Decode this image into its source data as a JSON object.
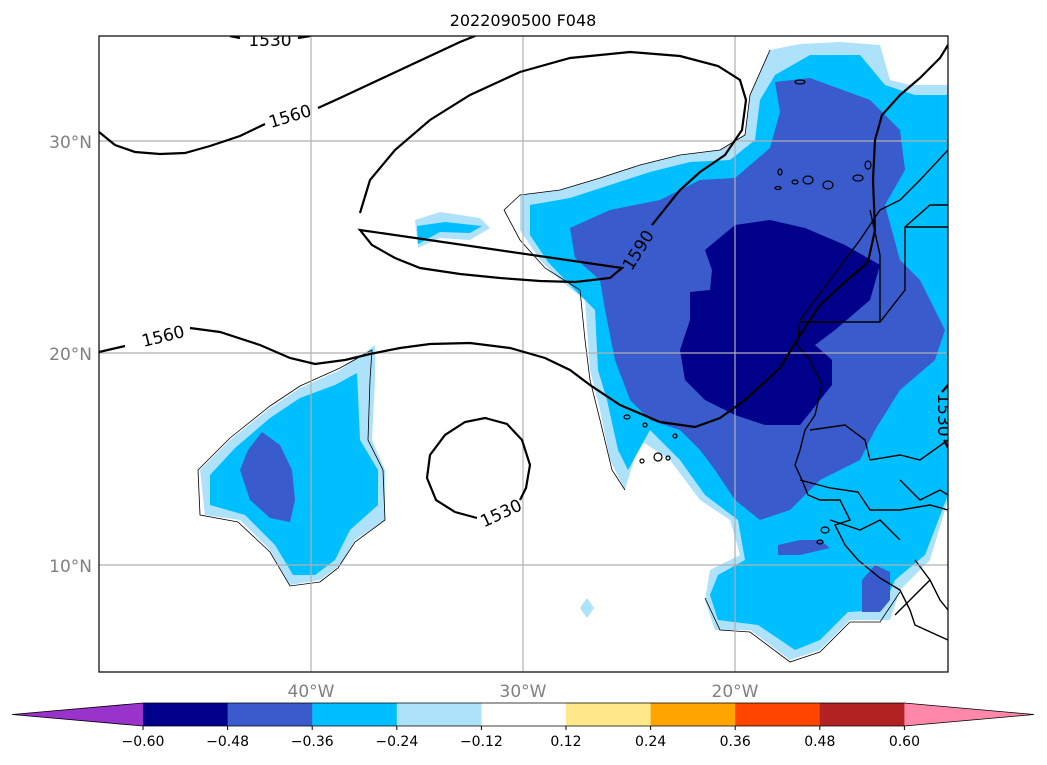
{
  "title": "2022090500 F048",
  "map": {
    "lat_ticks": [
      {
        "value": 30,
        "label": "30°N"
      },
      {
        "value": 20,
        "label": "20°N"
      },
      {
        "value": 10,
        "label": "10°N"
      }
    ],
    "lon_ticks": [
      {
        "value": -40,
        "label": "40°W"
      },
      {
        "value": -30,
        "label": "30°W"
      },
      {
        "value": -20,
        "label": "20°W"
      }
    ],
    "contours": [
      {
        "label": "1530",
        "lines": [
          "top-left",
          "center-circle",
          "right-edge"
        ]
      },
      {
        "label": "1560",
        "lines": [
          "upper-left",
          "mid-left"
        ]
      },
      {
        "label": "1590",
        "lines": [
          "ridge"
        ]
      }
    ],
    "contour_labels": [
      "1530",
      "1560",
      "1590",
      "1560",
      "1530",
      "1530"
    ]
  },
  "colorbar": {
    "ticks": [
      "−0.60",
      "−0.48",
      "−0.36",
      "−0.24",
      "−0.12",
      "0.12",
      "0.24",
      "0.36",
      "0.48",
      "0.60"
    ],
    "colors": [
      "#9933cc",
      "#00008b",
      "#3a5bcc",
      "#00bfff",
      "#aee2fa",
      "#ffffff",
      "#ffe98a",
      "#ffa500",
      "#ff4500",
      "#b22222",
      "#ff88aa"
    ]
  },
  "fill_colors": {
    "light": "#aee2fa",
    "cyan": "#00bfff",
    "blue": "#3a5bcc",
    "navy": "#00008b"
  }
}
